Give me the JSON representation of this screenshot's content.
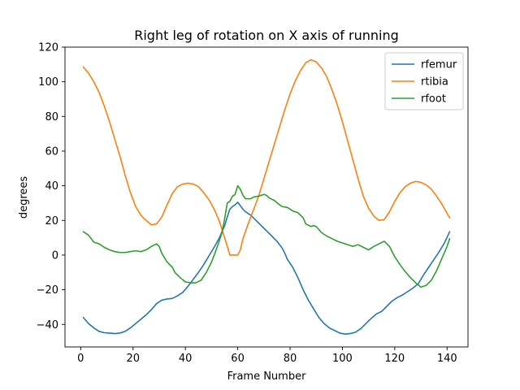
{
  "chart_data": {
    "type": "line",
    "title": "Right leg of rotation on X axis of running",
    "xlabel": "Frame Number",
    "ylabel": "degrees",
    "xlim": [
      -6,
      148
    ],
    "ylim": [
      -53,
      120
    ],
    "xticks": [
      0,
      20,
      40,
      60,
      80,
      100,
      120,
      140
    ],
    "yticks": [
      -40,
      -20,
      0,
      20,
      40,
      60,
      80,
      100,
      120
    ],
    "legend_position": "top-right",
    "grid": false,
    "series": [
      {
        "name": "rfemur",
        "color": "#1f77b4",
        "points": [
          [
            1,
            -36
          ],
          [
            3,
            -39.5
          ],
          [
            5,
            -42
          ],
          [
            7,
            -44
          ],
          [
            9,
            -44.8
          ],
          [
            11,
            -45
          ],
          [
            13,
            -45.3
          ],
          [
            15,
            -45
          ],
          [
            17,
            -44
          ],
          [
            19,
            -42
          ],
          [
            21,
            -39.5
          ],
          [
            23,
            -37
          ],
          [
            25,
            -34.5
          ],
          [
            27,
            -31.5
          ],
          [
            29,
            -28
          ],
          [
            31,
            -26
          ],
          [
            33,
            -25.3
          ],
          [
            35,
            -25
          ],
          [
            37,
            -23.5
          ],
          [
            39,
            -21.5
          ],
          [
            41,
            -18
          ],
          [
            43,
            -14
          ],
          [
            45,
            -10
          ],
          [
            47,
            -5.5
          ],
          [
            49,
            -0.5
          ],
          [
            51,
            4.5
          ],
          [
            53,
            10
          ],
          [
            55,
            17
          ],
          [
            56,
            22
          ],
          [
            57,
            26.5
          ],
          [
            58,
            28
          ],
          [
            59,
            29
          ],
          [
            60,
            30.5
          ],
          [
            61,
            28.5
          ],
          [
            62,
            26.5
          ],
          [
            63,
            25
          ],
          [
            65,
            23
          ],
          [
            67,
            20
          ],
          [
            69,
            17
          ],
          [
            71,
            14
          ],
          [
            73,
            11
          ],
          [
            75,
            8
          ],
          [
            77,
            4
          ],
          [
            78,
            1
          ],
          [
            79,
            -2.5
          ],
          [
            81,
            -7
          ],
          [
            83,
            -13
          ],
          [
            85,
            -20
          ],
          [
            87,
            -26
          ],
          [
            89,
            -31
          ],
          [
            91,
            -36
          ],
          [
            93,
            -39.5
          ],
          [
            95,
            -42
          ],
          [
            97,
            -43.5
          ],
          [
            99,
            -45
          ],
          [
            101,
            -45.6
          ],
          [
            103,
            -45.3
          ],
          [
            105,
            -44.5
          ],
          [
            107,
            -42.5
          ],
          [
            109,
            -39.5
          ],
          [
            111,
            -36.5
          ],
          [
            113,
            -34
          ],
          [
            115,
            -32.5
          ],
          [
            117,
            -29.5
          ],
          [
            119,
            -26.5
          ],
          [
            121,
            -24.5
          ],
          [
            123,
            -23
          ],
          [
            125,
            -21
          ],
          [
            127,
            -19
          ],
          [
            129,
            -16.5
          ],
          [
            131,
            -11.5
          ],
          [
            133,
            -7
          ],
          [
            135,
            -2.5
          ],
          [
            137,
            2
          ],
          [
            139,
            7
          ],
          [
            141,
            13.5
          ]
        ]
      },
      {
        "name": "rtibia",
        "color": "#ff7f0e",
        "points": [
          [
            1,
            108.5
          ],
          [
            3,
            105
          ],
          [
            5,
            100
          ],
          [
            7,
            94
          ],
          [
            9,
            86
          ],
          [
            11,
            77
          ],
          [
            13,
            67
          ],
          [
            15,
            57
          ],
          [
            17,
            46
          ],
          [
            19,
            36
          ],
          [
            21,
            28
          ],
          [
            23,
            23
          ],
          [
            25,
            20
          ],
          [
            27,
            17.5
          ],
          [
            29,
            18
          ],
          [
            31,
            22
          ],
          [
            33,
            29
          ],
          [
            35,
            35.5
          ],
          [
            37,
            39.5
          ],
          [
            39,
            41
          ],
          [
            41,
            41.5
          ],
          [
            43,
            41
          ],
          [
            45,
            39.5
          ],
          [
            47,
            36
          ],
          [
            49,
            32
          ],
          [
            51,
            26.5
          ],
          [
            53,
            19.5
          ],
          [
            55,
            10
          ],
          [
            56,
            5
          ],
          [
            57,
            0
          ],
          [
            59,
            0
          ],
          [
            60,
            0
          ],
          [
            61,
            3
          ],
          [
            62,
            9.5
          ],
          [
            64,
            18
          ],
          [
            66,
            26
          ],
          [
            68,
            34
          ],
          [
            70,
            44
          ],
          [
            72,
            54
          ],
          [
            74,
            64
          ],
          [
            76,
            74
          ],
          [
            78,
            84
          ],
          [
            80,
            93
          ],
          [
            82,
            100.5
          ],
          [
            84,
            106.5
          ],
          [
            86,
            111
          ],
          [
            88,
            112.7
          ],
          [
            90,
            111.5
          ],
          [
            92,
            108
          ],
          [
            94,
            103
          ],
          [
            96,
            95.5
          ],
          [
            98,
            87
          ],
          [
            100,
            77
          ],
          [
            102,
            66
          ],
          [
            104,
            55
          ],
          [
            106,
            44
          ],
          [
            108,
            34
          ],
          [
            110,
            27
          ],
          [
            112,
            22.5
          ],
          [
            114,
            20
          ],
          [
            116,
            20.5
          ],
          [
            118,
            25
          ],
          [
            120,
            31
          ],
          [
            122,
            36
          ],
          [
            124,
            39.5
          ],
          [
            126,
            41.5
          ],
          [
            128,
            42.5
          ],
          [
            130,
            42
          ],
          [
            132,
            40.5
          ],
          [
            134,
            38
          ],
          [
            136,
            34
          ],
          [
            138,
            29.5
          ],
          [
            140,
            24
          ],
          [
            141,
            21.5
          ]
        ]
      },
      {
        "name": "rfoot",
        "color": "#2ca02c",
        "points": [
          [
            1,
            13.5
          ],
          [
            3,
            11.5
          ],
          [
            5,
            7.5
          ],
          [
            7,
            6.5
          ],
          [
            9,
            4.5
          ],
          [
            11,
            3
          ],
          [
            13,
            2
          ],
          [
            15,
            1.5
          ],
          [
            17,
            1.5
          ],
          [
            19,
            2
          ],
          [
            21,
            2.5
          ],
          [
            23,
            2
          ],
          [
            25,
            3
          ],
          [
            27,
            5
          ],
          [
            29,
            6.5
          ],
          [
            30,
            5
          ],
          [
            31,
            1
          ],
          [
            33,
            -4
          ],
          [
            35,
            -7
          ],
          [
            36,
            -10
          ],
          [
            38,
            -13
          ],
          [
            40,
            -15.5
          ],
          [
            42,
            -16
          ],
          [
            44,
            -16
          ],
          [
            46,
            -14.5
          ],
          [
            48,
            -10
          ],
          [
            50,
            -4
          ],
          [
            52,
            4
          ],
          [
            54,
            13
          ],
          [
            55,
            21
          ],
          [
            56,
            30
          ],
          [
            57,
            31
          ],
          [
            58,
            34
          ],
          [
            59,
            35
          ],
          [
            60,
            40
          ],
          [
            61,
            38
          ],
          [
            62,
            34.5
          ],
          [
            63,
            32.5
          ],
          [
            65,
            32.5
          ],
          [
            66,
            33.5
          ],
          [
            68,
            34
          ],
          [
            70,
            35
          ],
          [
            71,
            34.5
          ],
          [
            72,
            33
          ],
          [
            74,
            31.5
          ],
          [
            76,
            29
          ],
          [
            77,
            28
          ],
          [
            79,
            27.5
          ],
          [
            81,
            25.5
          ],
          [
            83,
            24.5
          ],
          [
            85,
            21.5
          ],
          [
            86,
            18
          ],
          [
            88,
            16.5
          ],
          [
            89,
            17
          ],
          [
            90,
            16.5
          ],
          [
            92,
            13
          ],
          [
            94,
            11
          ],
          [
            96,
            9.5
          ],
          [
            98,
            8
          ],
          [
            100,
            7
          ],
          [
            102,
            6
          ],
          [
            104,
            5
          ],
          [
            106,
            6
          ],
          [
            108,
            4.5
          ],
          [
            110,
            3
          ],
          [
            112,
            5
          ],
          [
            114,
            6.5
          ],
          [
            116,
            8
          ],
          [
            118,
            5
          ],
          [
            120,
            -1
          ],
          [
            122,
            -5.5
          ],
          [
            124,
            -9.5
          ],
          [
            126,
            -13
          ],
          [
            128,
            -16
          ],
          [
            130,
            -18.5
          ],
          [
            132,
            -17.5
          ],
          [
            134,
            -14.5
          ],
          [
            136,
            -9
          ],
          [
            138,
            -2
          ],
          [
            140,
            5
          ],
          [
            141,
            9.5
          ]
        ]
      }
    ]
  }
}
